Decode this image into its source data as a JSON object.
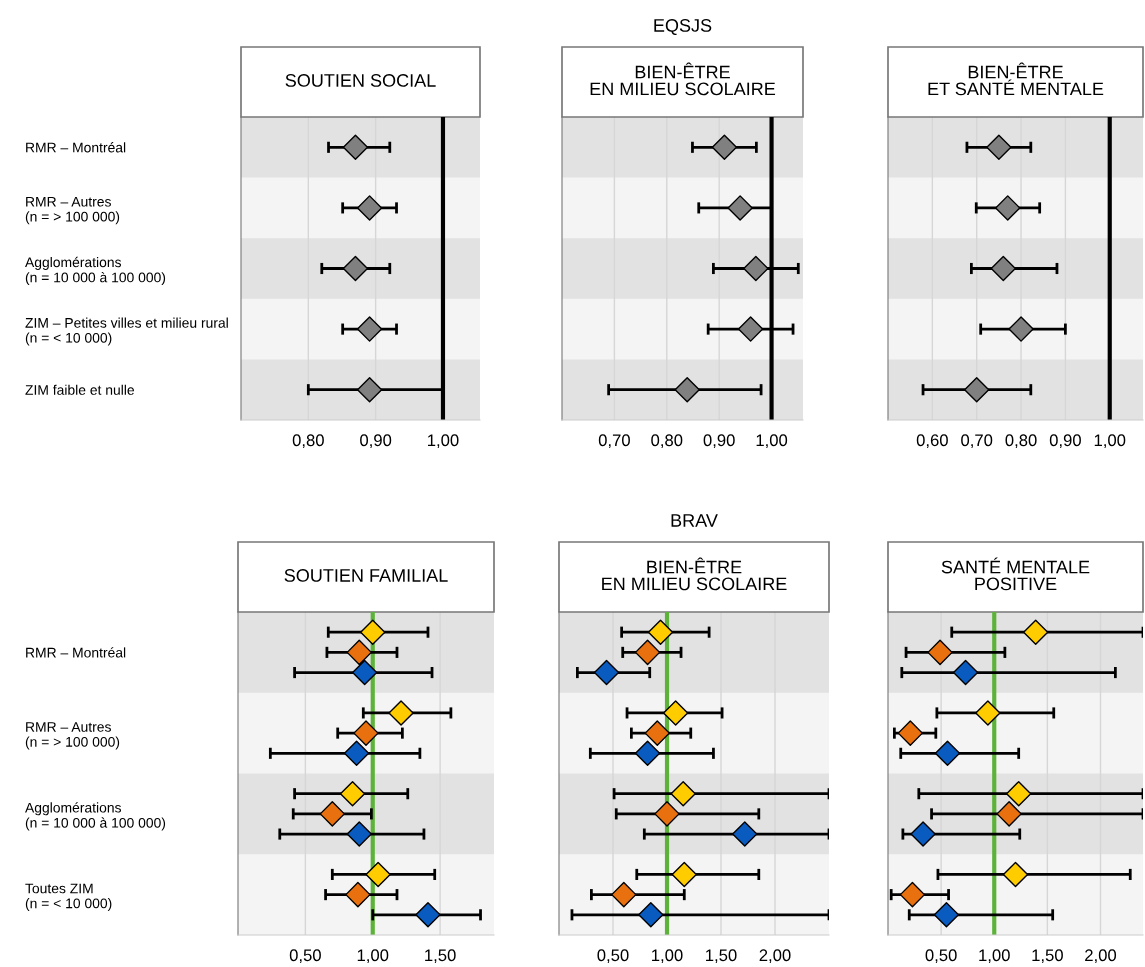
{
  "chart_data": [
    {
      "type": "scatter",
      "orientation": "horizontal",
      "title": "SOUTIEN SOCIAL",
      "categories": [
        "RMR – Montréal",
        "RMR – Autres\n(n = > 100 000)",
        "Agglomérations\n(n = 10 000 à 100 000)",
        "ZIM – Petites villes et milieu rural\n(n = < 10 000)",
        "ZIM faible et nulle"
      ],
      "series": [
        {
          "color": "#808080",
          "values": [
            0.87,
            0.891,
            0.87,
            0.891,
            0.891
          ],
          "errors": [
            [
              0.83,
              0.921
            ],
            [
              0.851,
              0.931
            ],
            [
              0.82,
              0.921
            ],
            [
              0.851,
              0.931
            ],
            [
              0.8,
              1.0
            ]
          ]
        }
      ],
      "xlim": [
        0.7,
        1.055
      ],
      "xticks": [
        {
          "value": 0.8,
          "label": "0,80"
        },
        {
          "value": 0.9,
          "label": "0,90"
        },
        {
          "value": 1.0,
          "label": "1,00"
        }
      ],
      "bands": [
        {
          "axis": "y",
          "from": "RMR – Montréal",
          "to": "RMR – Montréal",
          "color": "#e2e2e2"
        },
        {
          "axis": "y",
          "from": "Agglomérations\n(n = 10 000 à 100 000)",
          "to": "Agglomérations\n(n = 10 000 à 100 000)",
          "color": "#e2e2e2"
        },
        {
          "axis": "y",
          "from": "ZIM faible et nulle",
          "to": "ZIM faible et nulle",
          "color": "#e2e2e2"
        }
      ],
      "ref_lines": [
        {
          "axis": "x",
          "value": 1.0,
          "color": "#000000"
        }
      ],
      "grid": "x",
      "marker": "diamond"
    },
    {
      "type": "scatter",
      "orientation": "horizontal",
      "title": "BIEN-ÊTRE\nEN MILIEU SCOLAIRE",
      "annotations": [
        "EQSJS"
      ],
      "categories": [
        "RMR – Montréal",
        "RMR – Autres\n(n = > 100 000)",
        "Agglomérations\n(n = 10 000 à 100 000)",
        "ZIM – Petites villes et milieu rural\n(n = < 10 000)",
        "ZIM faible et nulle"
      ],
      "series": [
        {
          "color": "#808080",
          "values": [
            0.91,
            0.94,
            0.97,
            0.96,
            0.839
          ],
          "errors": [
            [
              0.849,
              0.971
            ],
            [
              0.861,
              1.0
            ],
            [
              0.889,
              1.051
            ],
            [
              0.879,
              1.041
            ],
            [
              0.689,
              0.98
            ]
          ]
        }
      ],
      "xlim": [
        0.6,
        1.06
      ],
      "xticks": [
        {
          "value": 0.7,
          "label": "0,70"
        },
        {
          "value": 0.8,
          "label": "0,80"
        },
        {
          "value": 0.9,
          "label": "0,90"
        },
        {
          "value": 1.0,
          "label": "1,00"
        }
      ],
      "bands": [
        {
          "axis": "y",
          "from": "RMR – Montréal",
          "to": "RMR – Montréal",
          "color": "#e2e2e2"
        },
        {
          "axis": "y",
          "from": "Agglomérations\n(n = 10 000 à 100 000)",
          "to": "Agglomérations\n(n = 10 000 à 100 000)",
          "color": "#e2e2e2"
        },
        {
          "axis": "y",
          "from": "ZIM faible et nulle",
          "to": "ZIM faible et nulle",
          "color": "#e2e2e2"
        }
      ],
      "ref_lines": [
        {
          "axis": "x",
          "value": 1.0,
          "color": "#000000"
        }
      ],
      "grid": "x",
      "marker": "diamond",
      "tick_labels": "x"
    },
    {
      "type": "scatter",
      "orientation": "horizontal",
      "title": "BIEN-ÊTRE\nET SANTÉ MENTALE",
      "categories": [
        "RMR – Montréal",
        "RMR – Autres\n(n = > 100 000)",
        "Agglomérations\n(n = 10 000 à 100 000)",
        "ZIM – Petites villes et milieu rural\n(n = < 10 000)",
        "ZIM faible et nulle"
      ],
      "series": [
        {
          "color": "#808080",
          "values": [
            0.75,
            0.77,
            0.76,
            0.8,
            0.7
          ],
          "errors": [
            [
              0.678,
              0.822
            ],
            [
              0.699,
              0.842
            ],
            [
              0.688,
              0.881
            ],
            [
              0.709,
              0.9
            ],
            [
              0.579,
              0.822
            ]
          ]
        }
      ],
      "xlim": [
        0.5,
        1.075
      ],
      "xticks": [
        {
          "value": 0.6,
          "label": "0,60"
        },
        {
          "value": 0.7,
          "label": "0,70"
        },
        {
          "value": 0.8,
          "label": "0,80"
        },
        {
          "value": 0.9,
          "label": "0,90"
        },
        {
          "value": 1.0,
          "label": "1,00"
        }
      ],
      "bands": [
        {
          "axis": "y",
          "from": "RMR – Montréal",
          "to": "RMR – Montréal",
          "color": "#e2e2e2"
        },
        {
          "axis": "y",
          "from": "Agglomérations\n(n = 10 000 à 100 000)",
          "to": "Agglomérations\n(n = 10 000 à 100 000)",
          "color": "#e2e2e2"
        },
        {
          "axis": "y",
          "from": "ZIM faible et nulle",
          "to": "ZIM faible et nulle",
          "color": "#e2e2e2"
        }
      ],
      "ref_lines": [
        {
          "axis": "x",
          "value": 1.0,
          "color": "#000000"
        }
      ],
      "grid": "x",
      "marker": "diamond",
      "tick_labels": "x"
    },
    {
      "type": "scatter",
      "orientation": "horizontal",
      "title": "SOUTIEN FAMILIAL",
      "categories": [
        "RMR – Montréal",
        "RMR – Autres\n(n = > 100 000)",
        "Agglomérations\n(n = 10 000 à 100 000)",
        "Toutes ZIM\n(n = < 10 000)"
      ],
      "series": [
        {
          "color": "#ffcc00",
          "values": [
            1.0,
            1.21,
            0.85,
            1.04
          ],
          "errors": [
            [
              0.67,
              1.41
            ],
            [
              0.93,
              1.58
            ],
            [
              0.42,
              1.26
            ],
            [
              0.7,
              1.46
            ]
          ]
        },
        {
          "color": "#e8700f",
          "values": [
            0.9,
            0.95,
            0.7,
            0.89
          ],
          "errors": [
            [
              0.66,
              1.18
            ],
            [
              0.74,
              1.22
            ],
            [
              0.41,
              0.99
            ],
            [
              0.65,
              1.18
            ]
          ]
        },
        {
          "color": "#0a5bbf",
          "values": [
            0.94,
            0.88,
            0.9,
            1.41
          ],
          "errors": [
            [
              0.42,
              1.44
            ],
            [
              0.24,
              1.35
            ],
            [
              0.31,
              1.38
            ],
            [
              1.0,
              1.8
            ]
          ]
        }
      ],
      "xlim": [
        0.0,
        1.9
      ],
      "xticks": [
        {
          "value": 0.5,
          "label": "0,50"
        },
        {
          "value": 1.0,
          "label": "1,00"
        },
        {
          "value": 1.5,
          "label": "1,50"
        }
      ],
      "bands": [
        {
          "axis": "y",
          "from": "RMR – Montréal",
          "to": "RMR – Montréal",
          "color": "#e2e2e2"
        },
        {
          "axis": "y",
          "from": "Agglomérations\n(n = 10 000 à 100 000)",
          "to": "Agglomérations\n(n = 10 000 à 100 000)",
          "color": "#e2e2e2"
        }
      ],
      "ref_lines": [
        {
          "axis": "x",
          "value": 1.0,
          "color": "#5db33a"
        }
      ],
      "grid": "x",
      "marker": "diamond"
    },
    {
      "type": "scatter",
      "orientation": "horizontal",
      "title": "BIEN-ÊTRE\nEN MILIEU SCOLAIRE",
      "annotations": [
        "BRAV"
      ],
      "categories": [
        "RMR – Montréal",
        "RMR – Autres\n(n = > 100 000)",
        "Agglomérations\n(n = 10 000 à 100 000)",
        "Toutes ZIM\n(n = < 10 000)"
      ],
      "series": [
        {
          "color": "#ffcc00",
          "values": [
            0.94,
            1.08,
            1.15,
            1.16
          ],
          "errors": [
            [
              0.58,
              1.39
            ],
            [
              0.63,
              1.51
            ],
            [
              0.51,
              2.5
            ],
            [
              0.72,
              1.85
            ]
          ]
        },
        {
          "color": "#e8700f",
          "values": [
            0.82,
            0.91,
            1.0,
            0.6
          ],
          "errors": [
            [
              0.59,
              1.13
            ],
            [
              0.67,
              1.22
            ],
            [
              0.53,
              1.85
            ],
            [
              0.3,
              1.16
            ]
          ]
        },
        {
          "color": "#0a5bbf",
          "values": [
            0.44,
            0.82,
            1.72,
            0.85
          ],
          "errors": [
            [
              0.17,
              0.84
            ],
            [
              0.29,
              1.43
            ],
            [
              0.79,
              2.5
            ],
            [
              0.12,
              2.5
            ]
          ]
        }
      ],
      "xlim": [
        0.0,
        2.5
      ],
      "xticks": [
        {
          "value": 0.5,
          "label": "0,50"
        },
        {
          "value": 1.0,
          "label": "1,00"
        },
        {
          "value": 1.5,
          "label": "1,50"
        },
        {
          "value": 2.0,
          "label": "2,00"
        }
      ],
      "bands": [
        {
          "axis": "y",
          "from": "RMR – Montréal",
          "to": "RMR – Montréal",
          "color": "#e2e2e2"
        },
        {
          "axis": "y",
          "from": "Agglomérations\n(n = 10 000 à 100 000)",
          "to": "Agglomérations\n(n = 10 000 à 100 000)",
          "color": "#e2e2e2"
        }
      ],
      "ref_lines": [
        {
          "axis": "x",
          "value": 1.0,
          "color": "#5db33a"
        }
      ],
      "grid": "x",
      "marker": "diamond",
      "tick_labels": "x"
    },
    {
      "type": "scatter",
      "orientation": "horizontal",
      "title": "SANTÉ MENTALE\nPOSITIVE",
      "categories": [
        "RMR – Montréal",
        "RMR – Autres\n(n = > 100 000)",
        "Agglomérations\n(n = 10 000 à 100 000)",
        "Toutes ZIM\n(n = < 10 000)"
      ],
      "series": [
        {
          "color": "#ffcc00",
          "values": [
            1.39,
            0.94,
            1.23,
            1.2
          ],
          "errors": [
            [
              0.6,
              2.4
            ],
            [
              0.46,
              1.56
            ],
            [
              0.29,
              2.4
            ],
            [
              0.47,
              2.28
            ]
          ]
        },
        {
          "color": "#e8700f",
          "values": [
            0.49,
            0.21,
            1.14,
            0.23
          ],
          "errors": [
            [
              0.17,
              1.1
            ],
            [
              0.06,
              0.45
            ],
            [
              0.41,
              2.4
            ],
            [
              0.03,
              0.57
            ]
          ]
        },
        {
          "color": "#0a5bbf",
          "values": [
            0.73,
            0.56,
            0.33,
            0.55
          ],
          "errors": [
            [
              0.13,
              2.14
            ],
            [
              0.12,
              1.23
            ],
            [
              0.14,
              1.24
            ],
            [
              0.2,
              1.55
            ]
          ]
        }
      ],
      "xlim": [
        0.0,
        2.4
      ],
      "xticks": [
        {
          "value": 0.5,
          "label": "0,50"
        },
        {
          "value": 1.0,
          "label": "1,00"
        },
        {
          "value": 1.5,
          "label": "1,50"
        },
        {
          "value": 2.0,
          "label": "2,00"
        }
      ],
      "bands": [
        {
          "axis": "y",
          "from": "RMR – Montréal",
          "to": "RMR – Montréal",
          "color": "#e2e2e2"
        },
        {
          "axis": "y",
          "from": "Agglomérations\n(n = 10 000 à 100 000)",
          "to": "Agglomérations\n(n = 10 000 à 100 000)",
          "color": "#e2e2e2"
        }
      ],
      "ref_lines": [
        {
          "axis": "x",
          "value": 1.0,
          "color": "#5db33a"
        }
      ],
      "grid": "x",
      "marker": "diamond",
      "tick_labels": "x"
    }
  ]
}
